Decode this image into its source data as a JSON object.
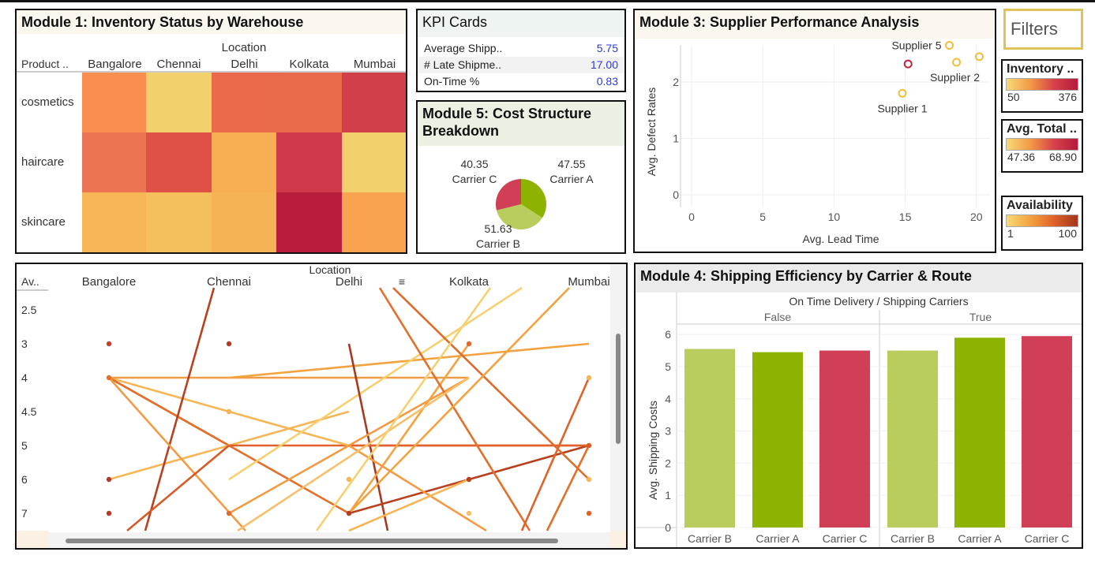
{
  "module1": {
    "title": "Module 1: Inventory Status by Warehouse",
    "col_header_top": "Location",
    "row_header": "Product ..",
    "columns": [
      "Bangalore",
      "Chennai",
      "Delhi",
      "Kolkata",
      "Mumbai"
    ],
    "rows": [
      "cosmetics",
      "haircare",
      "skincare"
    ],
    "cell_colors": [
      [
        "#f98f4e",
        "#f2d06b",
        "#e9694a",
        "#e86a4a",
        "#d1404a"
      ],
      [
        "#ec7452",
        "#df5147",
        "#f7ad52",
        "#d0394a",
        "#f2d06b"
      ],
      [
        "#f6b655",
        "#f4c05e",
        "#f6b355",
        "#b81d3e",
        "#faa34f"
      ]
    ]
  },
  "kpi": {
    "title": "KPI Cards",
    "rows": [
      {
        "label": "Average Shipp..",
        "value": "5.75"
      },
      {
        "label": "# Late Shipme..",
        "value": "17.00"
      },
      {
        "label": "On-Time %",
        "value": "0.83"
      }
    ]
  },
  "module5": {
    "title_line1": "Module 5: Cost Structure",
    "title_line2": "Breakdown",
    "slices": [
      {
        "value": "47.55",
        "label": "Carrier A",
        "color": "#8db300"
      },
      {
        "value": "51.63",
        "label": "Carrier B",
        "color": "#b9cc5e"
      },
      {
        "value": "40.35",
        "label": "Carrier C",
        "color": "#d03f55"
      }
    ]
  },
  "module3": {
    "title": "Module 3: Supplier Performance Analysis",
    "xlabel": "Avg. Lead Time",
    "ylabel": "Avg. Defect Rates",
    "x_ticks": [
      "0",
      "5",
      "10",
      "15",
      "20"
    ],
    "y_ticks": [
      "0",
      "1",
      "2"
    ],
    "points": [
      {
        "label": "Supplier 5",
        "x": 18.1,
        "y": 2.65,
        "color": "#f0bf3a"
      },
      {
        "label": "Supplier 2",
        "x": 18.6,
        "y": 2.35,
        "color": "#f0bf3a"
      },
      {
        "label": "",
        "x": 20.2,
        "y": 2.45,
        "color": "#f0bf3a"
      },
      {
        "label": "",
        "x": 15.2,
        "y": 2.32,
        "color": "#c0243d"
      },
      {
        "label": "Supplier 1",
        "x": 14.8,
        "y": 1.8,
        "color": "#f0bf3a"
      }
    ]
  },
  "filters": {
    "title": "Filters",
    "legends": [
      {
        "title": "Inventory ..",
        "min": "50",
        "max": "376"
      },
      {
        "title": "Avg. Total ..",
        "min": "47.36",
        "max": "68.90"
      },
      {
        "title": "Availability",
        "min": "1",
        "max": "100"
      }
    ]
  },
  "module2": {
    "col_header_top": "Location",
    "row_header": "Av..",
    "columns": [
      "Bangalore",
      "Chennai",
      "Delhi",
      "Kolkata",
      "Mumbai"
    ],
    "sort_icon": "≡",
    "rows": [
      "2.5",
      "3",
      "4",
      "4.5",
      "5",
      "6",
      "7"
    ]
  },
  "module4": {
    "title": "Module 4: Shipping Efficiency by Carrier & Route",
    "header": "On Time Delivery  /  Shipping Carriers",
    "groups": [
      "False",
      "True"
    ],
    "ylabel": "Avg. Shipping Costs",
    "y_ticks": [
      "0",
      "1",
      "2",
      "3",
      "4",
      "5",
      "6"
    ],
    "bars": [
      {
        "label": "Carrier B",
        "value": 5.55,
        "color": "#b9cc5e"
      },
      {
        "label": "Carrier A",
        "value": 5.45,
        "color": "#8db300"
      },
      {
        "label": "Carrier C",
        "value": 5.5,
        "color": "#d03f55"
      },
      {
        "label": "Carrier B",
        "value": 5.5,
        "color": "#b9cc5e"
      },
      {
        "label": "Carrier A",
        "value": 5.9,
        "color": "#8db300"
      },
      {
        "label": "Carrier C",
        "value": 5.95,
        "color": "#d03f55"
      }
    ]
  }
}
